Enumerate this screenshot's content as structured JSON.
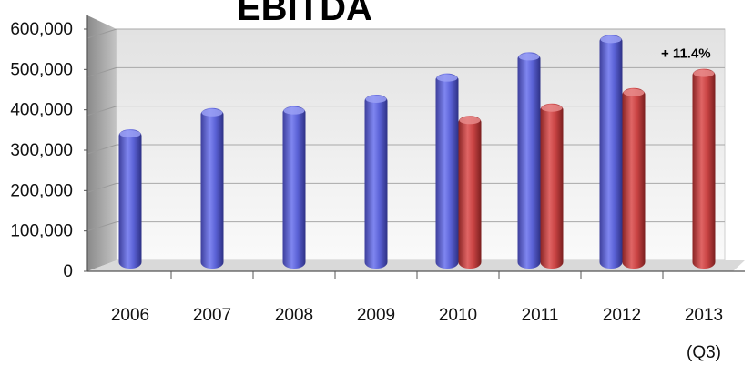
{
  "chart_data": {
    "type": "bar",
    "title": "EBITDA",
    "categories": [
      "2006",
      "2007",
      "2008",
      "2009",
      "2010",
      "2011",
      "2012",
      "2013"
    ],
    "category_sublabels": [
      "",
      "",
      "",
      "",
      "",
      "",
      "",
      "(Q3)"
    ],
    "series": [
      {
        "color": "#5b62d6",
        "values": [
          340000,
          395000,
          400000,
          430000,
          485000,
          540000,
          585000,
          null
        ]
      },
      {
        "color": "#c94343",
        "values": [
          null,
          null,
          null,
          null,
          375000,
          407000,
          447000,
          497000
        ]
      }
    ],
    "y_ticks": [
      "0",
      "100,000",
      "200,000",
      "300,000",
      "400,000",
      "500,000",
      "600,000"
    ],
    "ylim": [
      0,
      600000
    ],
    "grid": true,
    "annotation": {
      "text": "+ 11.4%",
      "category": "2013"
    }
  }
}
